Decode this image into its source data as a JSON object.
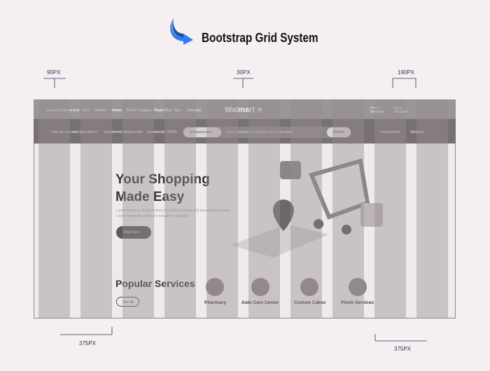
{
  "header": {
    "title": "Bootstrap Grid System"
  },
  "annotations": {
    "margin": "90PX",
    "gutter": "30PX",
    "column": "190PX",
    "left_width": "375PX",
    "right_width": "375PX"
  },
  "nav": {
    "items": [
      "Grocery & Essentials",
      "Tech",
      "Fashion",
      "Home",
      "School Supplies",
      "Flash Pics",
      "Toys",
      "Walmart+"
    ],
    "logo": "Walmart",
    "reorder": {
      "small": "Reorder",
      "label": "Services"
    },
    "account": {
      "small": "Sign In",
      "label": "Account"
    }
  },
  "subnav": {
    "delivery": "How do you want your items?",
    "store": "Sacramento Supercenter",
    "zip": "Sacramento, 95829",
    "departments_select": "All Departments",
    "search_placeholder": "Search everything at Walmart online and in store",
    "search_button": "Search",
    "departments": "Departments",
    "services": "Services"
  },
  "hero": {
    "title_line1": "Your Shopping",
    "title_line2": "Made Easy",
    "text": "Lorem Ipsum is simply dummy text of the printing and typesetting industry. Lorem Ipsum has been the industry's standard",
    "button": "Shop Now"
  },
  "services": {
    "title": "Popular Services",
    "button": "See all",
    "items": [
      "Pharmacy",
      "Auto Care Center",
      "Custom Cakes",
      "Photo Services"
    ]
  }
}
